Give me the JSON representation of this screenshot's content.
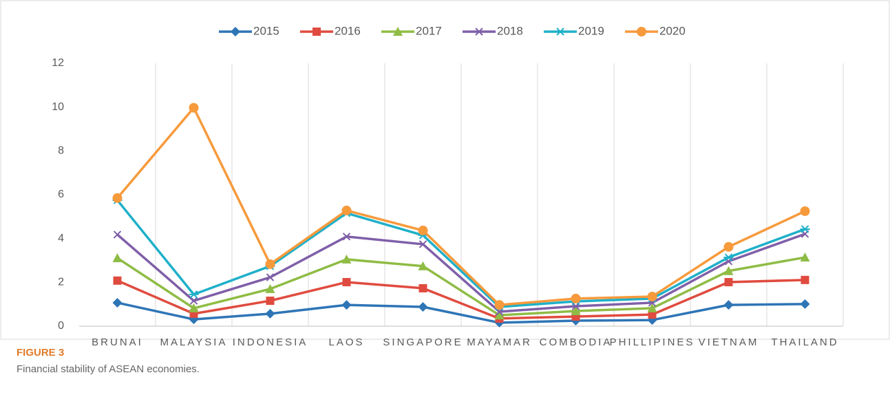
{
  "chart_data": {
    "type": "line",
    "figure_label": "FIGURE 3",
    "caption": "Financial stability of ASEAN economies.",
    "categories": [
      "BRUNAI",
      "MALAYSIA",
      "INDONESIA",
      "LAOS",
      "SINGAPORE",
      "MAYAMAR",
      "COMBODIA",
      "PHILLIPINES",
      "VIETNAM",
      "THAILAND"
    ],
    "series": [
      {
        "name": "2015",
        "color": "#2e75b6",
        "marker": "diamond",
        "values": [
          1.07,
          0.31,
          0.57,
          0.97,
          0.88,
          0.16,
          0.25,
          0.28,
          0.97,
          1.01
        ]
      },
      {
        "name": "2016",
        "color": "#e04b3f",
        "marker": "square",
        "values": [
          2.08,
          0.57,
          1.16,
          2.01,
          1.73,
          0.35,
          0.44,
          0.53,
          2.01,
          2.11
        ]
      },
      {
        "name": "2017",
        "color": "#8fbc45",
        "marker": "triangle",
        "values": [
          3.11,
          0.82,
          1.7,
          3.05,
          2.74,
          0.5,
          0.69,
          0.82,
          2.52,
          3.14
        ]
      },
      {
        "name": "2018",
        "color": "#7f5fa8",
        "marker": "x",
        "values": [
          4.18,
          1.16,
          2.23,
          4.09,
          3.74,
          0.66,
          0.91,
          1.07,
          2.96,
          4.21
        ]
      },
      {
        "name": "2019",
        "color": "#1fb0c9",
        "marker": "star",
        "values": [
          5.75,
          1.45,
          2.74,
          5.16,
          4.15,
          0.88,
          1.13,
          1.26,
          3.14,
          4.43
        ]
      },
      {
        "name": "2020",
        "color": "#f79a3c",
        "marker": "circle",
        "values": [
          5.85,
          9.97,
          2.83,
          5.28,
          4.37,
          0.97,
          1.26,
          1.35,
          3.62,
          5.25
        ]
      }
    ],
    "ylim": [
      0,
      12
    ],
    "yticks": [
      0,
      2,
      4,
      6,
      8,
      10,
      12
    ],
    "legend": "top"
  }
}
